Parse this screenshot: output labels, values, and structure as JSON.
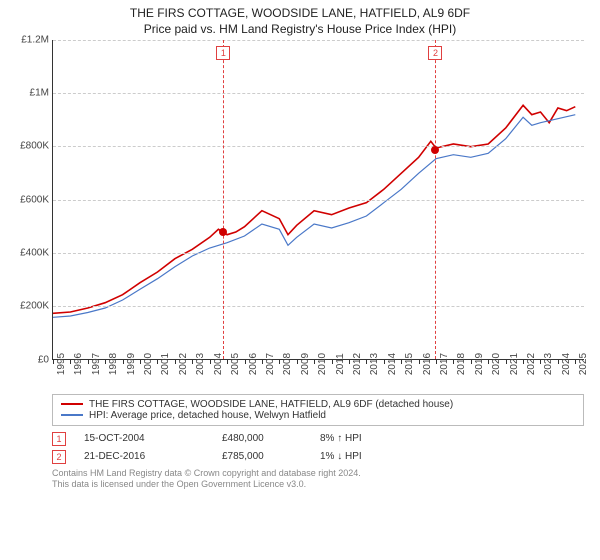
{
  "title": "THE FIRS COTTAGE, WOODSIDE LANE, HATFIELD, AL9 6DF",
  "subtitle": "Price paid vs. HM Land Registry's House Price Index (HPI)",
  "chart": {
    "type": "line",
    "background_color": "#ffffff",
    "grid_color": "#cccccc",
    "axis_color": "#333333",
    "label_color": "#444444",
    "label_fontsize": 10,
    "title_fontsize": 12,
    "x": {
      "min": 1995,
      "max": 2025.5,
      "ticks": [
        1995,
        1996,
        1997,
        1998,
        1999,
        2000,
        2001,
        2002,
        2003,
        2004,
        2005,
        2006,
        2007,
        2008,
        2009,
        2010,
        2011,
        2012,
        2013,
        2014,
        2015,
        2016,
        2017,
        2018,
        2019,
        2020,
        2021,
        2022,
        2023,
        2024,
        2025
      ],
      "tick_labels": [
        "1995",
        "1996",
        "1997",
        "1998",
        "1999",
        "2000",
        "2001",
        "2002",
        "2003",
        "2004",
        "2005",
        "2006",
        "2007",
        "2008",
        "2009",
        "2010",
        "2011",
        "2012",
        "2013",
        "2014",
        "2015",
        "2016",
        "2017",
        "2018",
        "2019",
        "2020",
        "2021",
        "2022",
        "2023",
        "2024",
        "2025"
      ]
    },
    "y": {
      "min": 0,
      "max": 1200000,
      "ticks": [
        0,
        200000,
        400000,
        600000,
        800000,
        1000000,
        1200000
      ],
      "tick_labels": [
        "£0",
        "£200K",
        "£400K",
        "£600K",
        "£800K",
        "£1M",
        "£1.2M"
      ]
    },
    "series": [
      {
        "name": "property",
        "label": "THE FIRS COTTAGE, WOODSIDE LANE, HATFIELD, AL9 6DF (detached house)",
        "color": "#d00000",
        "width": 1.6,
        "x": [
          1995,
          1996,
          1997,
          1998,
          1999,
          2000,
          2001,
          2002,
          2003,
          2004,
          2004.5,
          2005,
          2005.5,
          2006,
          2007,
          2008,
          2008.5,
          2009,
          2010,
          2011,
          2012,
          2013,
          2014,
          2015,
          2016,
          2016.7,
          2017,
          2018,
          2019,
          2020,
          2021,
          2022,
          2022.5,
          2023,
          2023.5,
          2024,
          2024.5,
          2025
        ],
        "y": [
          175000,
          180000,
          195000,
          215000,
          245000,
          290000,
          330000,
          380000,
          415000,
          460000,
          490000,
          470000,
          480000,
          500000,
          560000,
          530000,
          470000,
          505000,
          560000,
          545000,
          570000,
          590000,
          640000,
          700000,
          760000,
          820000,
          795000,
          810000,
          800000,
          810000,
          870000,
          955000,
          920000,
          930000,
          890000,
          945000,
          935000,
          950000
        ]
      },
      {
        "name": "hpi",
        "label": "HPI: Average price, detached house, Welwyn Hatfield",
        "color": "#4a78c8",
        "width": 1.2,
        "x": [
          1995,
          1996,
          1997,
          1998,
          1999,
          2000,
          2001,
          2002,
          2003,
          2004,
          2005,
          2006,
          2007,
          2008,
          2008.5,
          2009,
          2010,
          2011,
          2012,
          2013,
          2014,
          2015,
          2016,
          2017,
          2018,
          2019,
          2020,
          2021,
          2022,
          2022.5,
          2023,
          2024,
          2025
        ],
        "y": [
          160000,
          165000,
          178000,
          195000,
          225000,
          265000,
          305000,
          350000,
          390000,
          420000,
          440000,
          465000,
          510000,
          490000,
          430000,
          460000,
          510000,
          495000,
          515000,
          540000,
          590000,
          640000,
          700000,
          755000,
          770000,
          760000,
          775000,
          830000,
          910000,
          880000,
          890000,
          905000,
          920000
        ]
      }
    ],
    "markers": [
      {
        "id": "1",
        "x": 2004.79
      },
      {
        "id": "2",
        "x": 2016.97
      }
    ],
    "sale_points": [
      {
        "x": 2004.79,
        "y": 480000
      },
      {
        "x": 2016.97,
        "y": 785000
      }
    ]
  },
  "legend": {
    "items": [
      {
        "color": "#d00000",
        "label": "THE FIRS COTTAGE, WOODSIDE LANE, HATFIELD, AL9 6DF (detached house)"
      },
      {
        "color": "#4a78c8",
        "label": "HPI: Average price, detached house, Welwyn Hatfield"
      }
    ]
  },
  "sales": [
    {
      "id": "1",
      "date": "15-OCT-2004",
      "price": "£480,000",
      "delta": "8% ↑ HPI"
    },
    {
      "id": "2",
      "date": "21-DEC-2016",
      "price": "£785,000",
      "delta": "1% ↓ HPI"
    }
  ],
  "footer": {
    "line1": "Contains HM Land Registry data © Crown copyright and database right 2024.",
    "line2": "This data is licensed under the Open Government Licence v3.0."
  }
}
